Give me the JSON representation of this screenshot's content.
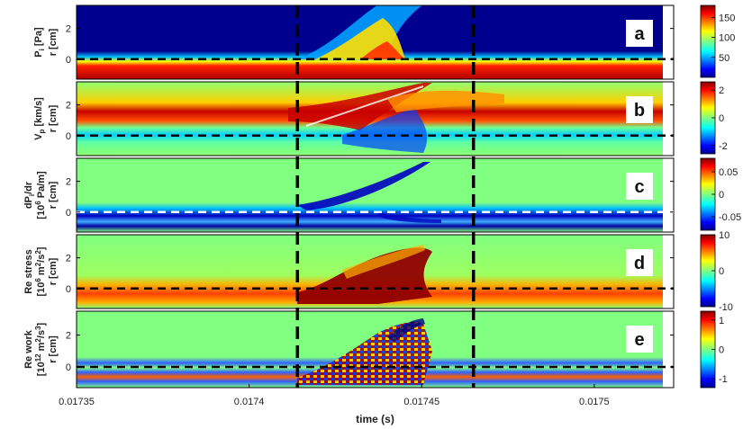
{
  "chart_data": {
    "type": "heatmap",
    "xlabel": "time (s)",
    "x_ticks": [
      "0.01735",
      "0.0174",
      "0.01745",
      "0.0175"
    ],
    "x_tick_values": [
      0.01735,
      0.0174,
      0.01745,
      0.0175
    ],
    "xlim": [
      0.01735,
      0.017523
    ],
    "vertical_dashed_lines": [
      0.017414,
      0.017465
    ],
    "grid": false,
    "colormap": "jet",
    "panels": [
      {
        "letter": "a",
        "ylabel_qty": "P",
        "ylabel_sub": "i",
        "ylabel_unit": " [Pa]",
        "ylabel_r": "r [cm]",
        "y_ticks": [
          "2",
          "0"
        ],
        "y_tick_values": [
          2,
          0
        ],
        "ylim": [
          -1.3,
          3.5
        ],
        "hline": 0,
        "hline_color": "#000000",
        "cbar_ticks": [
          "150",
          "100",
          "50"
        ],
        "cbar_tick_values": [
          150,
          100,
          50
        ],
        "clim": [
          0,
          180
        ]
      },
      {
        "letter": "b",
        "ylabel_qty": "V",
        "ylabel_sub": "p",
        "ylabel_unit": " [km/s]",
        "ylabel_r": "r [cm]",
        "y_ticks": [
          "2",
          "0"
        ],
        "y_tick_values": [
          2,
          0
        ],
        "ylim": [
          -1.3,
          3.5
        ],
        "hline": 0,
        "hline_color": "#000000",
        "cbar_ticks": [
          "2",
          "0",
          "-2"
        ],
        "cbar_tick_values": [
          2,
          0,
          -2
        ],
        "clim": [
          -2.6,
          2.6
        ]
      },
      {
        "letter": "c",
        "ylabel_qty": "dP",
        "ylabel_sub": "i",
        "ylabel_unit": "/dr",
        "ylabel_line2a": "[10",
        "ylabel_sup": "6",
        "ylabel_line2b": " Pa/m]",
        "ylabel_r": "r [cm]",
        "y_ticks": [
          "2",
          "0"
        ],
        "y_tick_values": [
          2,
          0
        ],
        "ylim": [
          -1.3,
          3.5
        ],
        "hline": 0,
        "hline_color": "#ffffff",
        "cbar_ticks": [
          "0.05",
          "0",
          "-0.05"
        ],
        "cbar_tick_values": [
          0.05,
          0,
          -0.05
        ],
        "clim": [
          -0.08,
          0.08
        ]
      },
      {
        "letter": "d",
        "ylabel_line1": "Re stress",
        "ylabel_line2a": "[10",
        "ylabel_sup": "6",
        "ylabel_line2b": " m",
        "ylabel_sup2": "2",
        "ylabel_line2c": "/s",
        "ylabel_sup3": "2",
        "ylabel_line2d": "]",
        "ylabel_r": "r [cm]",
        "y_ticks": [
          "2",
          "0"
        ],
        "y_tick_values": [
          2,
          0
        ],
        "ylim": [
          -1.3,
          3.5
        ],
        "hline": 0,
        "hline_color": "#000000",
        "cbar_ticks": [
          "10",
          "0",
          "-10"
        ],
        "cbar_tick_values": [
          10,
          0,
          -10
        ],
        "clim": [
          -10,
          10
        ]
      },
      {
        "letter": "e",
        "ylabel_line1": "Re work",
        "ylabel_line2a": "[10",
        "ylabel_sup": "12",
        "ylabel_line2b": " m",
        "ylabel_sup2": "2",
        "ylabel_line2c": "/s",
        "ylabel_sup3": "3",
        "ylabel_line2d": "]",
        "ylabel_r": "r [cm]",
        "y_ticks": [
          "2",
          "0"
        ],
        "y_tick_values": [
          2,
          0
        ],
        "ylim": [
          -1.3,
          3.5
        ],
        "hline": 0,
        "hline_color": "#000000",
        "cbar_ticks": [
          "1",
          "0",
          "-1"
        ],
        "cbar_tick_values": [
          1,
          0,
          -1
        ],
        "clim": [
          -1.3,
          1.3
        ]
      }
    ]
  }
}
